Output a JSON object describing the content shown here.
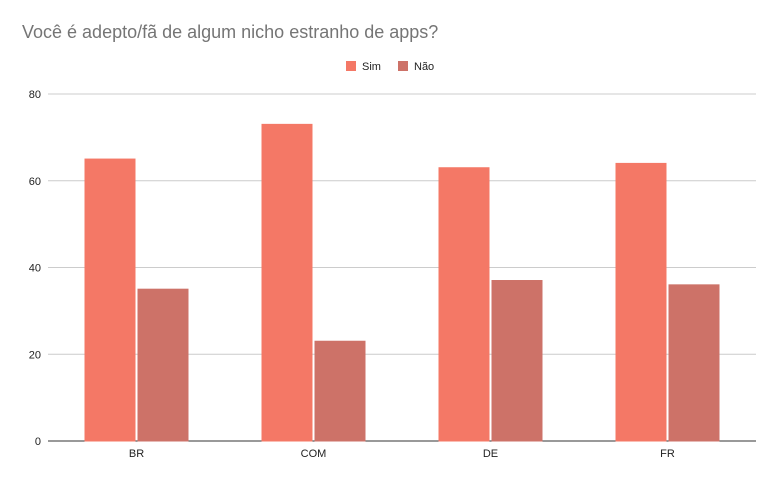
{
  "chart_data": {
    "type": "bar",
    "title": "Você é adepto/fã de algum nicho estranho de apps?",
    "xlabel": "",
    "ylabel": "",
    "categories": [
      "BR",
      "COM",
      "DE",
      "FR"
    ],
    "series": [
      {
        "name": "Sim",
        "color": "#f47866",
        "values": [
          65,
          73,
          63,
          64
        ]
      },
      {
        "name": "Não",
        "color": "#cd7268",
        "values": [
          35,
          23,
          37,
          36
        ]
      }
    ],
    "ylim": [
      0,
      80
    ],
    "yticks": [
      0,
      20,
      40,
      60,
      80
    ],
    "grid": true,
    "legend_position": "top-center"
  }
}
